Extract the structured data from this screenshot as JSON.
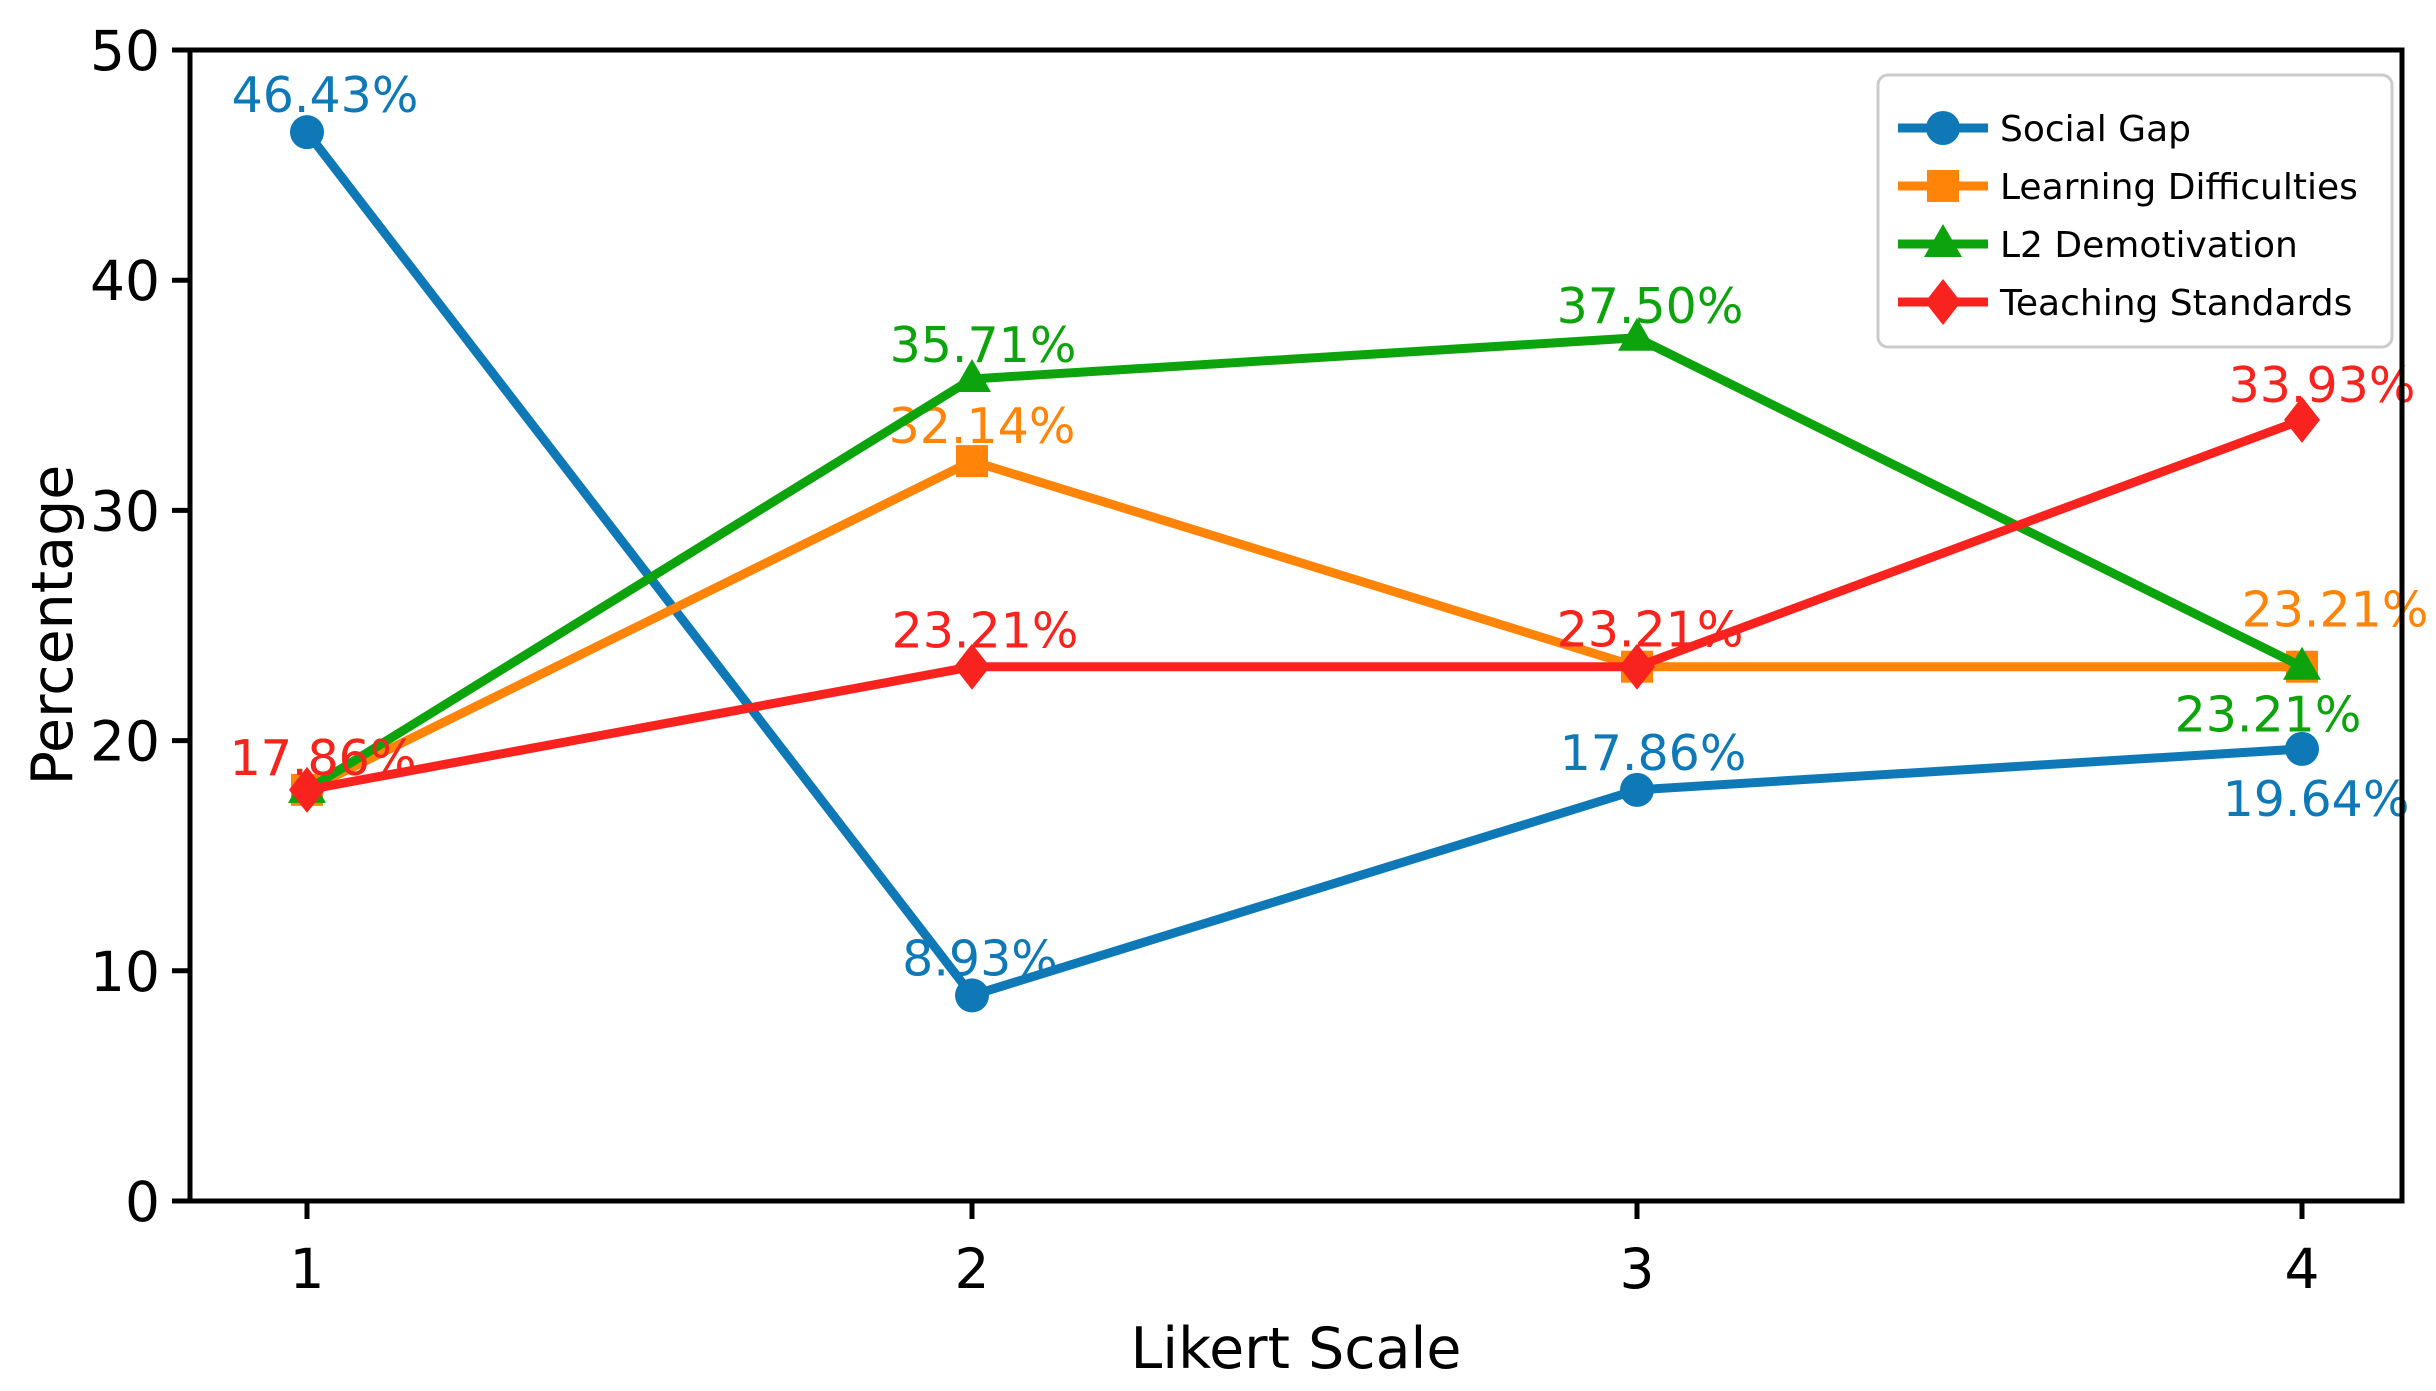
{
  "chart_data": {
    "type": "line",
    "title": "",
    "xlabel": "Likert Scale",
    "ylabel": "Percentage",
    "categories": [
      1,
      2,
      3,
      4
    ],
    "xtick_labels": [
      "1",
      "2",
      "3",
      "4"
    ],
    "ytick_values": [
      0,
      10,
      20,
      30,
      40,
      50
    ],
    "ytick_labels": [
      "0",
      "10",
      "20",
      "30",
      "40",
      "50"
    ],
    "ylim": [
      0,
      50
    ],
    "grid": false,
    "legend_position": "upper right",
    "background_color": "#ffffff",
    "axis_color": "#000000",
    "legend_border_color": "#cbcbcb",
    "series": [
      {
        "name": "Social Gap",
        "color": "#0e79b6",
        "marker": "circle",
        "values": [
          46.43,
          8.93,
          17.86,
          19.64
        ],
        "point_labels": [
          "46.43%",
          "8.93%",
          "17.86%",
          "19.64%"
        ]
      },
      {
        "name": "Learning Difficulties",
        "color": "#ff8408",
        "marker": "square",
        "values": [
          17.86,
          32.14,
          23.21,
          23.21
        ],
        "point_labels": [
          "17.86%",
          "32.14%",
          "23.21%",
          "23.21%"
        ]
      },
      {
        "name": "L2 Demotivation",
        "color": "#0da30d",
        "marker": "triangle",
        "values": [
          17.86,
          35.71,
          37.5,
          23.21
        ],
        "point_labels": [
          "17.86%",
          "35.71%",
          "37.50%",
          "23.21%"
        ]
      },
      {
        "name": "Teaching Standards",
        "color": "#f8231f",
        "marker": "diamond",
        "values": [
          17.86,
          23.21,
          23.21,
          33.93
        ],
        "point_labels": [
          "17.86%",
          "23.21%",
          "23.21%",
          "33.93%"
        ]
      }
    ]
  }
}
